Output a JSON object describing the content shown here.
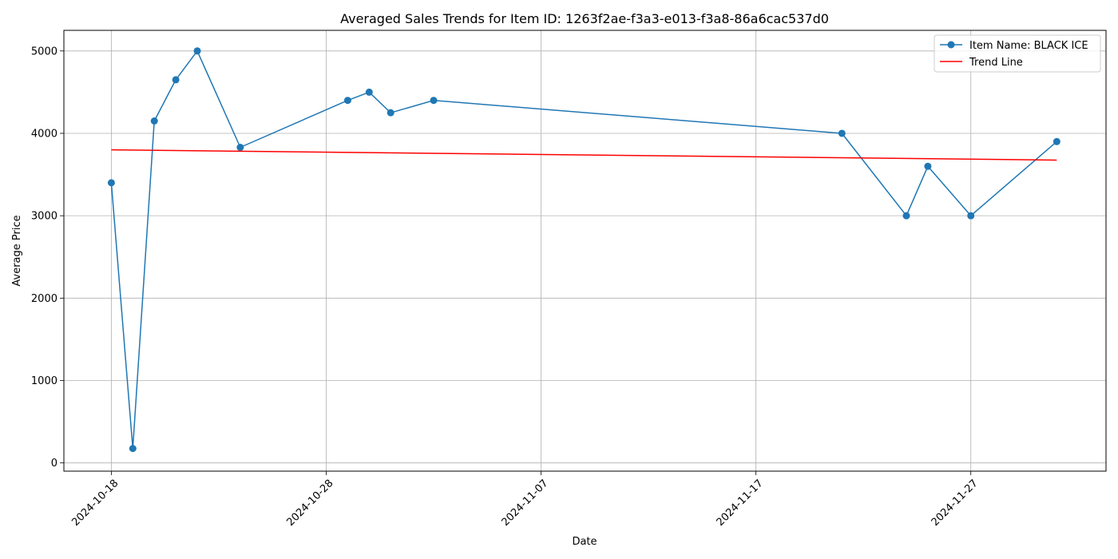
{
  "chart_data": {
    "type": "line",
    "title": "Averaged Sales Trends for Item ID: 1263f2ae-f3a3-e013-f3a8-86a6cac537d0",
    "xlabel": "Date",
    "ylabel": "Average Price",
    "x_ticks": [
      "2024-10-18",
      "2024-10-28",
      "2024-11-07",
      "2024-11-17",
      "2024-11-27"
    ],
    "y_ticks": [
      0,
      1000,
      2000,
      3000,
      4000,
      5000
    ],
    "ylim": [
      -100,
      5250
    ],
    "xlim": [
      "2024-10-15T19:00",
      "2024-12-03T07:00"
    ],
    "grid": true,
    "legend_position": "top-right",
    "series": [
      {
        "name": "Item Name: BLACK ICE",
        "color": "#1f77b4",
        "marker": "circle",
        "points": [
          {
            "x": "2024-10-18",
            "y": 3400
          },
          {
            "x": "2024-10-19",
            "y": 175
          },
          {
            "x": "2024-10-20",
            "y": 4150
          },
          {
            "x": "2024-10-21",
            "y": 4650
          },
          {
            "x": "2024-10-22",
            "y": 5000
          },
          {
            "x": "2024-10-24",
            "y": 3830
          },
          {
            "x": "2024-10-29",
            "y": 4400
          },
          {
            "x": "2024-10-30",
            "y": 4500
          },
          {
            "x": "2024-10-31",
            "y": 4250
          },
          {
            "x": "2024-11-02",
            "y": 4400
          },
          {
            "x": "2024-11-21",
            "y": 4000
          },
          {
            "x": "2024-11-24",
            "y": 3000
          },
          {
            "x": "2024-11-25",
            "y": 3600
          },
          {
            "x": "2024-11-27",
            "y": 3000
          },
          {
            "x": "2024-12-01",
            "y": 3900
          }
        ]
      },
      {
        "name": "Trend Line",
        "color": "#ff0000",
        "marker": "none",
        "points": [
          {
            "x": "2024-10-18",
            "y": 3800
          },
          {
            "x": "2024-12-01",
            "y": 3675
          }
        ]
      }
    ]
  }
}
